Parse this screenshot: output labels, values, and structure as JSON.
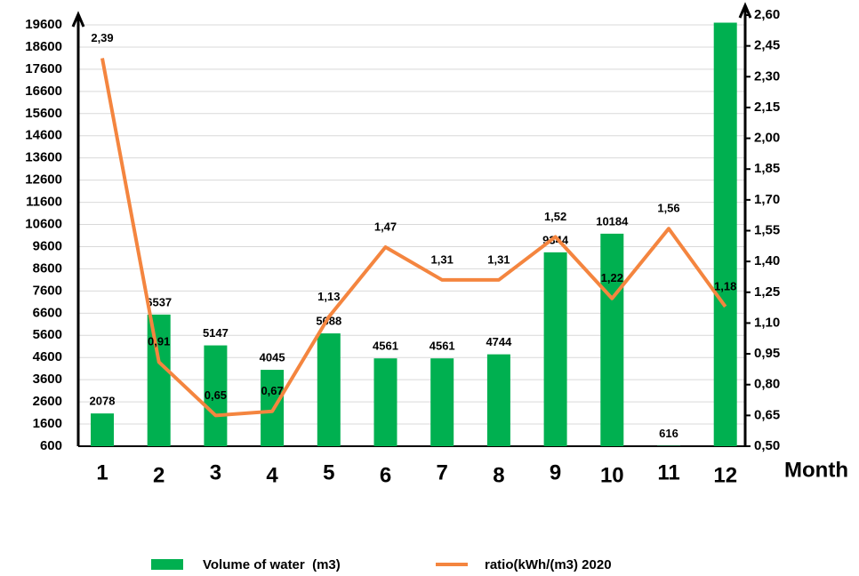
{
  "chart_data": {
    "type": "bar-line",
    "x_label": "Month",
    "categories": [
      "1",
      "2",
      "3",
      "4",
      "5",
      "6",
      "7",
      "8",
      "9",
      "10",
      "11",
      "12"
    ],
    "series": [
      {
        "name": "Volume of water  (m3)",
        "type": "bar",
        "color": "#00b050",
        "axis": "y",
        "values": [
          2078,
          6537,
          5147,
          4045,
          5688,
          4561,
          4561,
          4744,
          9344,
          10184,
          616,
          19700
        ],
        "value_labels": [
          "2078",
          "6537",
          "5147",
          "4045",
          "5688",
          "4561",
          "4561",
          "4744",
          "9344",
          "10184",
          "616",
          null
        ]
      },
      {
        "name": "ratio(kWh/(m3) 2020",
        "type": "line",
        "color": "#f4853f",
        "axis": "y2",
        "values": [
          2.39,
          0.91,
          0.65,
          0.67,
          1.13,
          1.47,
          1.31,
          1.31,
          1.52,
          1.22,
          1.56,
          1.18
        ],
        "value_labels": [
          "2,39",
          "0,91",
          "0,65",
          "0,67",
          "1,13",
          "1,47",
          "1,31",
          "1,31",
          "1,52",
          "1,22",
          "1,56",
          "1,18"
        ]
      }
    ],
    "ylim": [
      600,
      19600
    ],
    "yticks": [
      600,
      1600,
      2600,
      3600,
      4600,
      5600,
      6600,
      7600,
      8600,
      9600,
      10600,
      11600,
      12600,
      13600,
      14600,
      15600,
      16600,
      17600,
      18600,
      19600
    ],
    "y2lim": [
      0.5,
      2.6
    ],
    "y2ticks": [
      {
        "value": 0.5,
        "label": "0,50"
      },
      {
        "value": 0.65,
        "label": "0,65"
      },
      {
        "value": 0.8,
        "label": "0,80"
      },
      {
        "value": 0.95,
        "label": "0,95"
      },
      {
        "value": 1.1,
        "label": "1,10"
      },
      {
        "value": 1.25,
        "label": "1,25"
      },
      {
        "value": 1.4,
        "label": "1,40"
      },
      {
        "value": 1.55,
        "label": "1,55"
      },
      {
        "value": 1.7,
        "label": "1,70"
      },
      {
        "value": 1.85,
        "label": "1,85"
      },
      {
        "value": 2.0,
        "label": "2,00"
      },
      {
        "value": 2.15,
        "label": "2,15"
      },
      {
        "value": 2.3,
        "label": "2,30"
      },
      {
        "value": 2.45,
        "label": "2,45"
      },
      {
        "value": 2.6,
        "label": "2,60"
      }
    ],
    "grid": true,
    "legend": "bottom"
  }
}
